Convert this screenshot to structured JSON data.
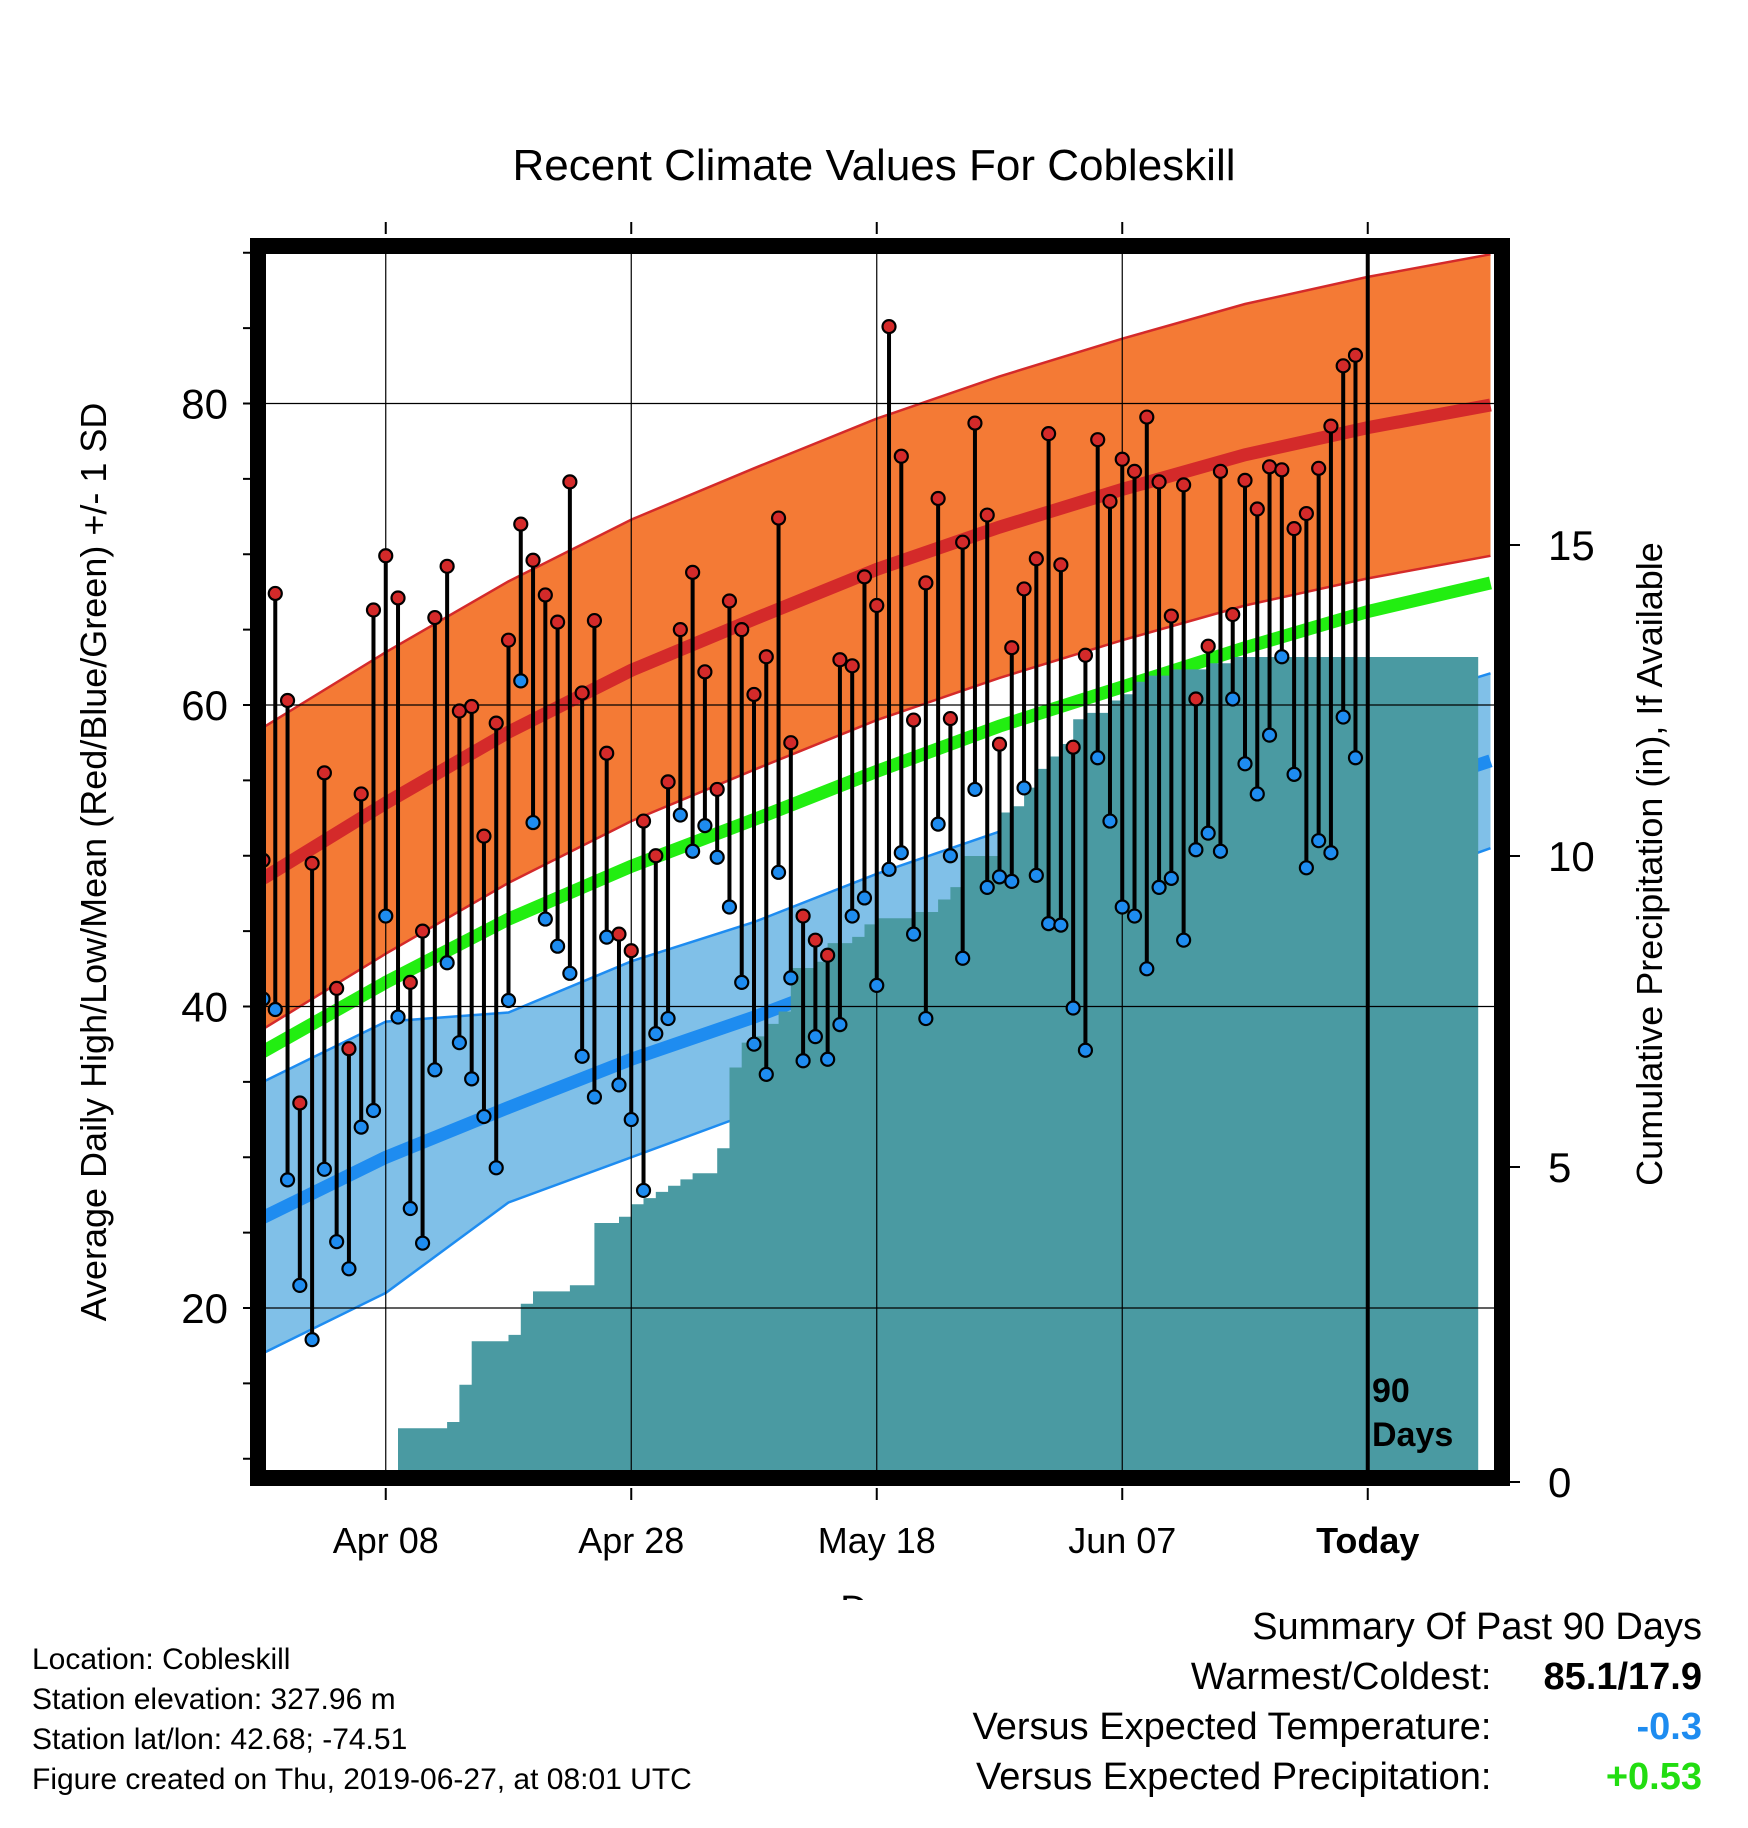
{
  "chart_data": {
    "type": "line",
    "title": "Recent Climate Values For Cobleskill",
    "xlabel": "Day",
    "ylabel": "Average Daily High/Low/Mean (Red/Blue/Green) +/- 1 SD",
    "ylabel_right": "Cumulative Precipitation (in), If Available",
    "x_ticks": [
      "Apr 08",
      "Apr 28",
      "May 18",
      "Jun 07",
      "Today"
    ],
    "y_ticks": [
      "20",
      "40",
      "60",
      "80"
    ],
    "y2_ticks": [
      "0",
      "5",
      "10",
      "15"
    ],
    "ylim": [
      10,
      90
    ],
    "y2lim": [
      0,
      18.6
    ],
    "marker_label": [
      "90",
      "Days"
    ],
    "grid": true,
    "colors": {
      "high_band": "#f47a35",
      "high_line": "#d42a2a",
      "low_band": "#80c0e8",
      "low_line": "#1e8cf0",
      "mean_line": "#22ee11",
      "precip": "#4a9aa2",
      "high_marker": "#d42a2a",
      "low_marker": "#1e8cf0"
    },
    "normals": {
      "days": [
        0,
        10,
        20,
        30,
        40,
        50,
        60,
        70,
        80,
        90,
        100
      ],
      "high": [
        48.5,
        53.5,
        58.2,
        62.3,
        65.7,
        69.0,
        71.8,
        74.3,
        76.6,
        78.4,
        79.9
      ],
      "high_sd": 10,
      "low": [
        26,
        30,
        33.3,
        36.5,
        39.3,
        42.4,
        45.3,
        48.2,
        51.0,
        53.6,
        56.3
      ],
      "low_sd": [
        9,
        9,
        6.3,
        6.5,
        6.3,
        6.4,
        6.3,
        6.2,
        6.0,
        6.0,
        5.8
      ],
      "mean": [
        37,
        41.6,
        45.8,
        49.3,
        52.4,
        55.6,
        58.6,
        61.2,
        63.8,
        66.2,
        68.1
      ]
    },
    "daily": {
      "high": [
        49.7,
        67.4,
        60.3,
        33.6,
        49.5,
        55.5,
        41.2,
        37.2,
        54.1,
        66.3,
        69.9,
        67.1,
        41.6,
        45.0,
        65.8,
        69.2,
        59.6,
        59.9,
        51.3,
        58.8,
        64.3,
        72.0,
        69.6,
        67.3,
        65.5,
        74.8,
        60.8,
        65.6,
        56.8,
        44.8,
        43.7,
        52.3,
        50.0,
        54.9,
        65.0,
        68.8,
        62.2,
        54.4,
        66.9,
        65.0,
        60.7,
        63.2,
        72.4,
        57.5,
        46.0,
        44.4,
        43.4,
        63.0,
        62.6,
        68.5,
        66.6,
        85.1,
        76.5,
        59.0,
        68.1,
        73.7,
        59.1,
        70.8,
        78.7,
        72.6,
        57.4,
        63.8,
        67.7,
        69.7,
        78.0,
        69.3,
        57.2,
        63.3,
        77.6,
        73.5,
        76.3,
        75.5,
        79.1,
        74.8,
        65.9,
        74.6,
        60.4,
        63.9,
        75.5,
        66.0,
        74.9,
        73.0,
        75.8,
        75.6,
        71.7,
        72.7,
        75.7,
        78.5,
        82.5,
        83.2
      ],
      "low": [
        40.5,
        39.8,
        28.5,
        21.5,
        17.9,
        29.2,
        24.4,
        22.6,
        32.0,
        33.1,
        46.0,
        39.3,
        26.6,
        24.3,
        35.8,
        42.9,
        37.6,
        35.2,
        32.7,
        29.3,
        40.4,
        61.6,
        52.2,
        45.8,
        44.0,
        42.2,
        36.7,
        34.0,
        44.6,
        34.8,
        32.5,
        27.8,
        38.2,
        39.2,
        52.7,
        50.3,
        52.0,
        49.9,
        46.6,
        41.6,
        37.5,
        35.5,
        48.9,
        41.9,
        36.4,
        38.0,
        36.5,
        38.8,
        46.0,
        47.2,
        41.4,
        49.1,
        50.2,
        44.8,
        39.2,
        52.1,
        50.0,
        43.2,
        54.4,
        47.9,
        48.6,
        48.3,
        54.5,
        48.7,
        45.5,
        45.4,
        39.9,
        37.1,
        56.5,
        52.3,
        46.6,
        46.0,
        42.5,
        47.9,
        48.5,
        44.4,
        50.4,
        51.5,
        50.3,
        60.4,
        56.1,
        54.1,
        58.0,
        63.2,
        55.4,
        49.2,
        51.0,
        50.2,
        59.2,
        56.5
      ]
    },
    "precip_cumulative": {
      "days": [
        0,
        10,
        11,
        15,
        16,
        17,
        18,
        19,
        20,
        21,
        22,
        23,
        24,
        25,
        26,
        27,
        28,
        29,
        30,
        31,
        32,
        33,
        34,
        35,
        36,
        37,
        38,
        39,
        40,
        41,
        42,
        43,
        44,
        45,
        46,
        47,
        48,
        49,
        50,
        51,
        52,
        53,
        54,
        55,
        56,
        57,
        58,
        59,
        60,
        61,
        62,
        63,
        64,
        65,
        66,
        67,
        68,
        69,
        70,
        71,
        72,
        73,
        74,
        75,
        76,
        77,
        78,
        79,
        80,
        81,
        82,
        83,
        84,
        85,
        86,
        87,
        88,
        89,
        90,
        99
      ],
      "values": [
        0,
        0,
        0.8,
        0.9,
        1.5,
        2.2,
        2.2,
        2.2,
        2.3,
        2.8,
        3.0,
        3.0,
        3.0,
        3.1,
        3.1,
        4.1,
        4.1,
        4.2,
        4.4,
        4.5,
        4.6,
        4.7,
        4.8,
        4.9,
        4.9,
        5.3,
        6.6,
        7.0,
        7.1,
        7.3,
        7.5,
        8.2,
        8.2,
        8.3,
        8.6,
        8.6,
        8.7,
        8.9,
        9.0,
        9.0,
        9.0,
        9.1,
        9.1,
        9.3,
        9.5,
        10.0,
        10.0,
        10.0,
        10.7,
        10.8,
        11.1,
        11.4,
        11.6,
        11.8,
        12.2,
        12.3,
        12.3,
        12.5,
        12.6,
        12.8,
        12.9,
        12.9,
        13.0,
        13.0,
        13.0,
        13.1,
        13.1,
        13.2,
        13.2,
        13.2,
        13.2,
        13.2,
        13.2,
        13.2,
        13.2,
        13.2,
        13.2,
        13.2,
        13.2,
        13.2
      ]
    }
  },
  "info": {
    "location": "Location: Cobleskill",
    "elevation": "Station elevation: 327.96 m",
    "latlon": "Station lat/lon: 42.68; -74.51",
    "created": "Figure created on Thu, 2019-06-27, at 08:01 UTC"
  },
  "summary": {
    "title": "Summary Of Past 90 Days",
    "warm_cold_label": "Warmest/Coldest:",
    "warm_cold_value": "85.1/17.9",
    "temp_label": "Versus Expected Temperature:",
    "temp_value": "-0.3",
    "temp_color": "#1e8cf0",
    "precip_label": "Versus Expected Precipitation:",
    "precip_value": "+0.53",
    "precip_color": "#22dd11"
  }
}
